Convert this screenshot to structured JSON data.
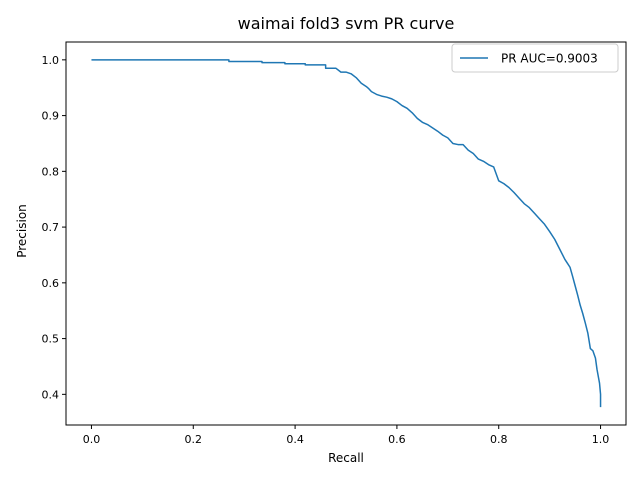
{
  "chart_data": {
    "type": "line",
    "title": "waimai fold3 svm PR curve",
    "xlabel": "Recall",
    "ylabel": "Precision",
    "xlim": [
      -0.05,
      1.05
    ],
    "ylim": [
      0.345,
      1.032
    ],
    "xticks": [
      0.0,
      0.2,
      0.4,
      0.6,
      0.8,
      1.0
    ],
    "xtick_labels": [
      "0.0",
      "0.2",
      "0.4",
      "0.6",
      "0.8",
      "1.0"
    ],
    "yticks": [
      0.4,
      0.5,
      0.6,
      0.7,
      0.8,
      0.9,
      1.0
    ],
    "ytick_labels": [
      "0.4",
      "0.5",
      "0.6",
      "0.7",
      "0.8",
      "0.9",
      "1.0"
    ],
    "grid": false,
    "legend_position": "top-right",
    "series": [
      {
        "name": "PR AUC=0.9003",
        "color": "#1f77b4",
        "x": [
          0.0,
          0.27,
          0.27,
          0.335,
          0.335,
          0.38,
          0.38,
          0.42,
          0.42,
          0.46,
          0.46,
          0.48,
          0.49,
          0.5,
          0.51,
          0.52,
          0.53,
          0.54,
          0.545,
          0.55,
          0.56,
          0.57,
          0.58,
          0.59,
          0.6,
          0.61,
          0.62,
          0.63,
          0.64,
          0.65,
          0.66,
          0.67,
          0.68,
          0.69,
          0.7,
          0.71,
          0.72,
          0.73,
          0.74,
          0.75,
          0.76,
          0.77,
          0.78,
          0.79,
          0.8,
          0.81,
          0.82,
          0.83,
          0.84,
          0.85,
          0.86,
          0.87,
          0.88,
          0.89,
          0.9,
          0.91,
          0.92,
          0.93,
          0.935,
          0.94,
          0.945,
          0.95,
          0.955,
          0.96,
          0.965,
          0.97,
          0.975,
          0.98,
          0.985,
          0.99,
          0.993,
          0.996,
          0.998,
          1.0,
          1.0
        ],
        "y": [
          1.0,
          1.0,
          0.997,
          0.997,
          0.995,
          0.995,
          0.993,
          0.993,
          0.991,
          0.991,
          0.985,
          0.985,
          0.978,
          0.978,
          0.975,
          0.968,
          0.958,
          0.952,
          0.948,
          0.943,
          0.938,
          0.935,
          0.933,
          0.93,
          0.925,
          0.918,
          0.913,
          0.905,
          0.895,
          0.888,
          0.884,
          0.878,
          0.872,
          0.865,
          0.86,
          0.85,
          0.848,
          0.848,
          0.838,
          0.832,
          0.822,
          0.818,
          0.812,
          0.808,
          0.783,
          0.778,
          0.771,
          0.762,
          0.752,
          0.742,
          0.735,
          0.725,
          0.715,
          0.705,
          0.692,
          0.678,
          0.66,
          0.642,
          0.635,
          0.628,
          0.612,
          0.595,
          0.578,
          0.56,
          0.545,
          0.528,
          0.51,
          0.482,
          0.478,
          0.465,
          0.445,
          0.43,
          0.42,
          0.4,
          0.377
        ]
      }
    ]
  }
}
